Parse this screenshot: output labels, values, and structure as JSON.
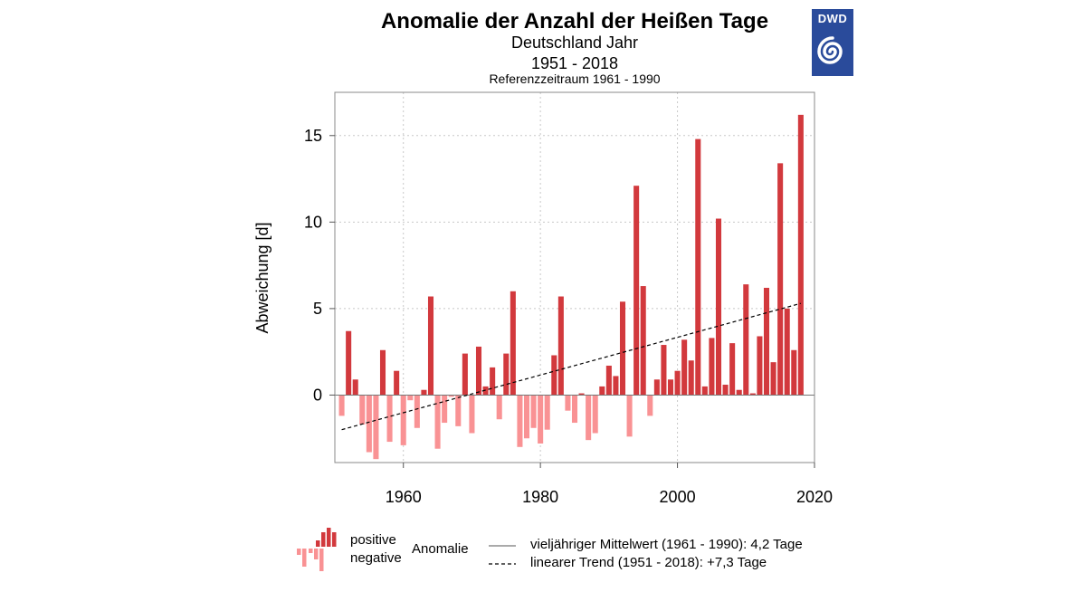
{
  "logo": {
    "label": "DWD"
  },
  "chart_data": {
    "type": "bar",
    "title": "Anomalie der Anzahl der Heißen Tage",
    "subtitle": "Deutschland Jahr",
    "period": "1951 - 2018",
    "reference": "Referenzzeitraum 1961 - 1990",
    "ylabel": "Abweichung [d]",
    "xlabel": "",
    "xlim": [
      1950,
      2020
    ],
    "ylim": [
      -3.9,
      17.5
    ],
    "xticks": [
      1960,
      1980,
      2000,
      2020
    ],
    "yticks": [
      0,
      5,
      10,
      15
    ],
    "grid": true,
    "years": [
      1951,
      1952,
      1953,
      1954,
      1955,
      1956,
      1957,
      1958,
      1959,
      1960,
      1961,
      1962,
      1963,
      1964,
      1965,
      1966,
      1967,
      1968,
      1969,
      1970,
      1971,
      1972,
      1973,
      1974,
      1975,
      1976,
      1977,
      1978,
      1979,
      1980,
      1981,
      1982,
      1983,
      1984,
      1985,
      1986,
      1987,
      1988,
      1989,
      1990,
      1991,
      1992,
      1993,
      1994,
      1995,
      1996,
      1997,
      1998,
      1999,
      2000,
      2001,
      2002,
      2003,
      2004,
      2005,
      2006,
      2007,
      2008,
      2009,
      2010,
      2011,
      2012,
      2013,
      2014,
      2015,
      2016,
      2017,
      2018
    ],
    "values": [
      -1.2,
      3.7,
      0.9,
      -1.7,
      -3.3,
      -3.7,
      2.6,
      -2.7,
      1.4,
      -2.9,
      -0.3,
      -1.9,
      0.3,
      5.7,
      -3.1,
      -1.6,
      -0.1,
      -1.8,
      2.4,
      -2.2,
      2.8,
      0.5,
      1.6,
      -1.4,
      2.4,
      6.0,
      -3.0,
      -2.5,
      -1.9,
      -2.8,
      -2.0,
      2.3,
      5.7,
      -0.9,
      -1.6,
      0.1,
      -2.6,
      -2.2,
      0.5,
      1.7,
      1.1,
      5.4,
      -2.4,
      12.1,
      6.3,
      -1.2,
      0.9,
      2.9,
      0.9,
      1.4,
      3.2,
      2.0,
      14.8,
      0.5,
      3.3,
      10.2,
      0.6,
      3.0,
      0.3,
      6.4,
      0.1,
      3.4,
      6.2,
      1.9,
      13.4,
      5.0,
      2.6,
      16.2
    ],
    "trend": {
      "start_year": 1951,
      "end_year": 2018,
      "start_value": -2.0,
      "end_value": 5.3
    },
    "colors": {
      "positive": "#d2393d",
      "negative": "#f99294",
      "trend": "#000000",
      "grid": "#c8c8c8"
    },
    "legend": {
      "positive": "positive",
      "negative": "negative",
      "anomalie": "Anomalie",
      "mean": "vieljähriger Mittelwert (1961 - 1990): 4,2 Tage",
      "trend": "linearer Trend (1951 - 2018): +7,3 Tage"
    }
  }
}
